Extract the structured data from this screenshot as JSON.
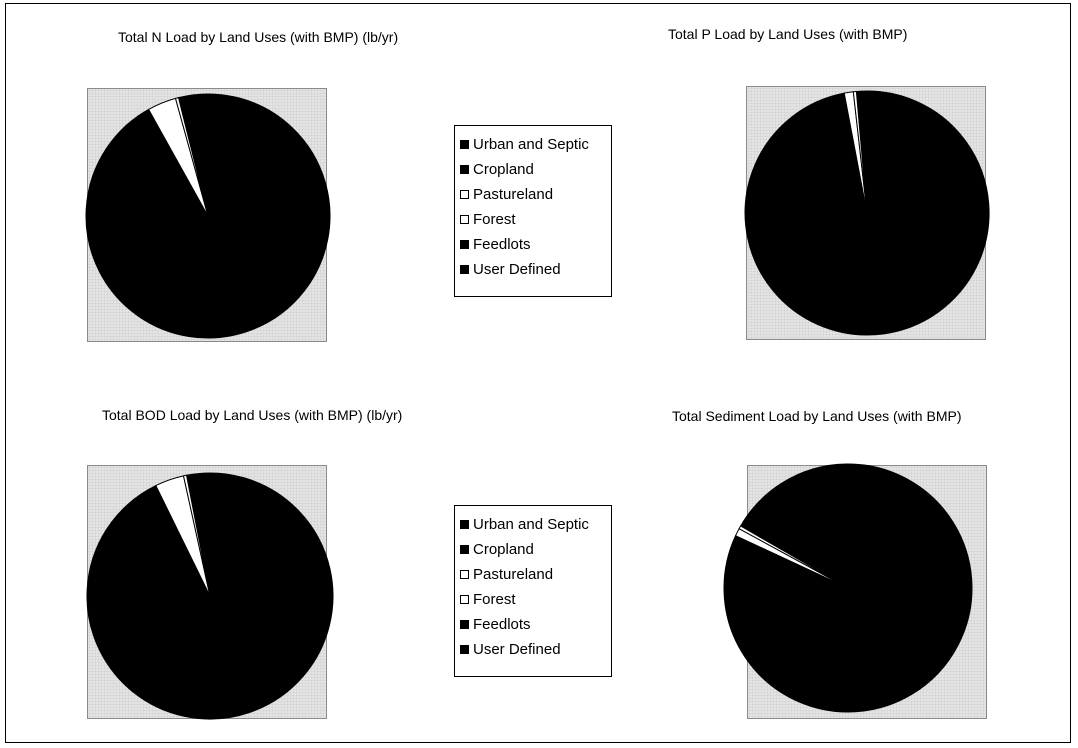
{
  "colors": {
    "dark": "#000000",
    "light": "#ffffff"
  },
  "legend_series": [
    "Urban and Septic",
    "Cropland",
    "Pastureland",
    "Forest",
    "Feedlots",
    "User Defined"
  ],
  "legend_colors": [
    "#000000",
    "#000000",
    "#ffffff",
    "#ffffff",
    "#000000",
    "#000000"
  ],
  "chart_data": [
    {
      "type": "pie",
      "title": "Total N Load by Land Uses (with BMP) (lb/yr)",
      "categories": [
        "Urban and Septic",
        "Cropland",
        "Pastureland",
        "Forest",
        "Feedlots",
        "User Defined"
      ],
      "values": [
        0.0,
        95.8,
        3.8,
        0.4,
        0.0,
        0.0
      ]
    },
    {
      "type": "pie",
      "title": "Total P Load by Land Uses (with BMP)",
      "categories": [
        "Urban and Septic",
        "Cropland",
        "Pastureland",
        "Forest",
        "Feedlots",
        "User Defined"
      ],
      "values": [
        0.0,
        98.4,
        1.2,
        0.4,
        0.0,
        0.0
      ]
    },
    {
      "type": "pie",
      "title": "Total BOD Load by Land Uses (with BMP) (lb/yr)",
      "categories": [
        "Urban and Septic",
        "Cropland",
        "Pastureland",
        "Forest",
        "Feedlots",
        "User Defined"
      ],
      "values": [
        0.0,
        95.8,
        3.8,
        0.4,
        0.0,
        0.0
      ]
    },
    {
      "type": "pie",
      "title": "Total Sediment Load by Land Uses (with BMP)",
      "categories": [
        "Urban and Septic",
        "Cropland",
        "Pastureland",
        "Forest",
        "Feedlots",
        "User Defined"
      ],
      "values": [
        0.0,
        98.6,
        1.0,
        0.4,
        0.0,
        0.0
      ]
    }
  ]
}
